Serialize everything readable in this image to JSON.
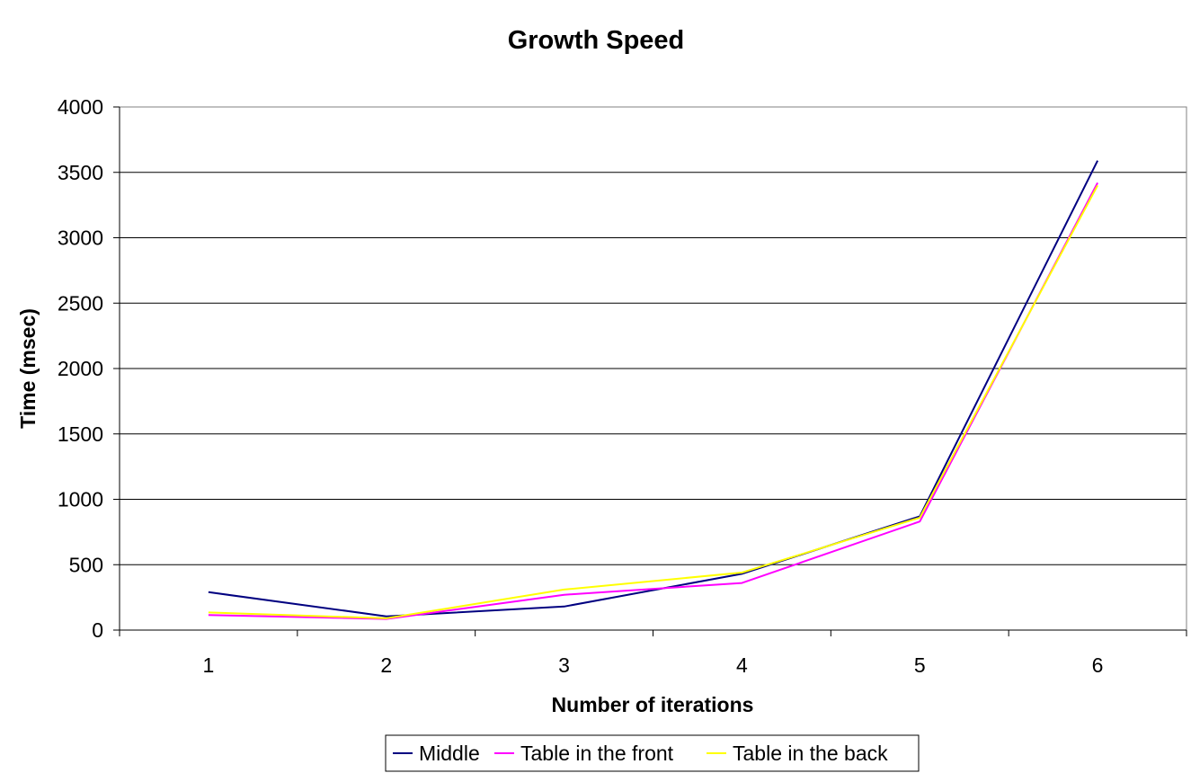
{
  "chart_data": {
    "type": "line",
    "title": "Growth Speed",
    "xlabel": "Number of iterations",
    "ylabel": "Time (msec)",
    "categories": [
      "1",
      "2",
      "3",
      "4",
      "5",
      "6"
    ],
    "ylim": [
      0,
      4000
    ],
    "yticks": [
      "0",
      "500",
      "1000",
      "1500",
      "2000",
      "2500",
      "3000",
      "3500",
      "4000"
    ],
    "grid": true,
    "legend_position": "bottom",
    "series": [
      {
        "name": "Middle",
        "color": "#000080",
        "values": [
          290,
          105,
          180,
          430,
          870,
          3590
        ]
      },
      {
        "name": "Table in the front",
        "color": "#ff00ff",
        "values": [
          115,
          85,
          270,
          360,
          830,
          3420
        ]
      },
      {
        "name": "Table in the back",
        "color": "#ffff00",
        "values": [
          135,
          90,
          310,
          440,
          860,
          3400
        ]
      }
    ]
  }
}
